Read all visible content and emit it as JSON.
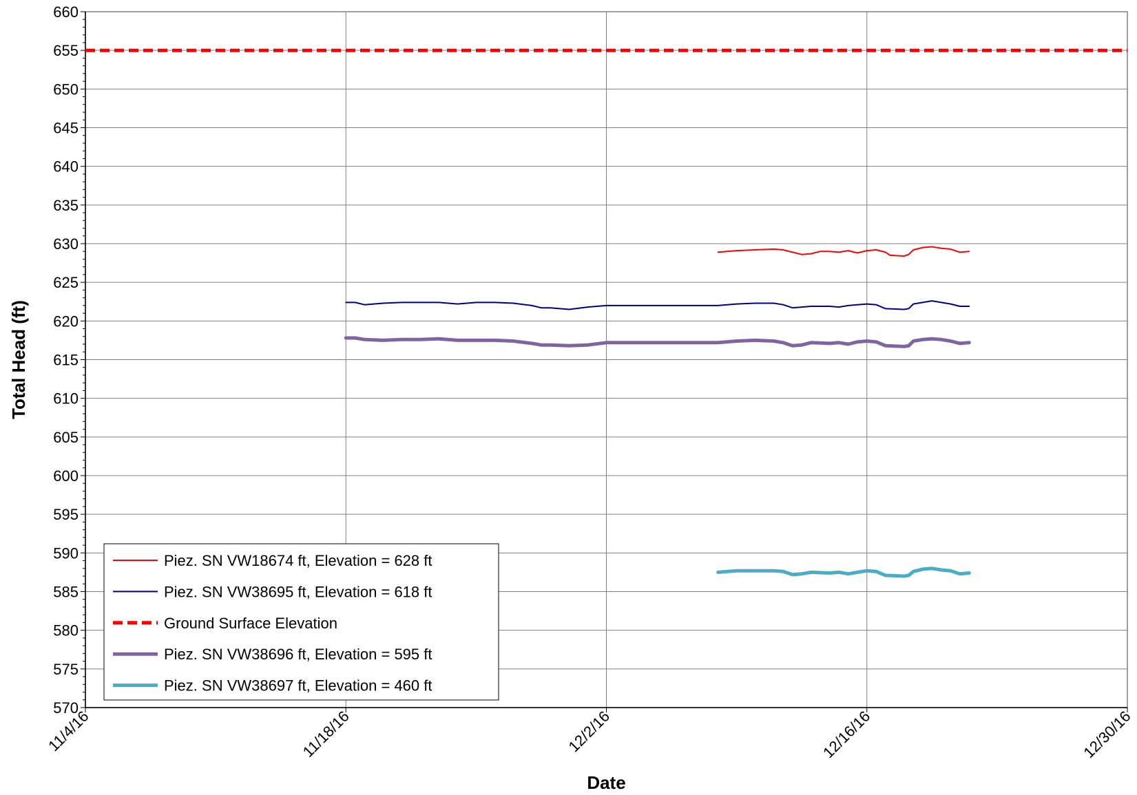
{
  "chart_data": {
    "type": "line",
    "xlabel": "Date",
    "ylabel": "Total Head (ft)",
    "ylim": [
      570,
      660
    ],
    "y_ticks": [
      570,
      575,
      580,
      585,
      590,
      595,
      600,
      605,
      610,
      615,
      620,
      625,
      630,
      635,
      640,
      645,
      650,
      655,
      660
    ],
    "x_range": [
      "2016-11-04",
      "2016-12-30"
    ],
    "x_ticks": [
      {
        "date": "2016-11-04",
        "label": "11/4/16"
      },
      {
        "date": "2016-11-18",
        "label": "11/18/16"
      },
      {
        "date": "2016-12-02",
        "label": "12/2/16"
      },
      {
        "date": "2016-12-16",
        "label": "12/16/16"
      },
      {
        "date": "2016-12-30",
        "label": "12/30/16"
      }
    ],
    "grid": true,
    "legend_position": "bottom-left",
    "series": [
      {
        "name": "Piez. SN VW18674 ft, Elevation = 628 ft",
        "color": "#ff0000",
        "style": "solid-thin",
        "points": [
          [
            "2016-12-08",
            628.9
          ],
          [
            "2016-12-09",
            629.1
          ],
          [
            "2016-12-10",
            629.2
          ],
          [
            "2016-12-11",
            629.3
          ],
          [
            "2016-12-11 12:00",
            629.2
          ],
          [
            "2016-12-12",
            628.9
          ],
          [
            "2016-12-12 12:00",
            628.6
          ],
          [
            "2016-12-13",
            628.7
          ],
          [
            "2016-12-13 12:00",
            629.0
          ],
          [
            "2016-12-14",
            629.0
          ],
          [
            "2016-12-14 12:00",
            628.9
          ],
          [
            "2016-12-15",
            629.1
          ],
          [
            "2016-12-15 12:00",
            628.8
          ],
          [
            "2016-12-16",
            629.1
          ],
          [
            "2016-12-16 12:00",
            629.2
          ],
          [
            "2016-12-17",
            628.9
          ],
          [
            "2016-12-17 06:00",
            628.5
          ],
          [
            "2016-12-18",
            628.4
          ],
          [
            "2016-12-18 06:00",
            628.6
          ],
          [
            "2016-12-18 12:00",
            629.2
          ],
          [
            "2016-12-19",
            629.5
          ],
          [
            "2016-12-19 12:00",
            629.6
          ],
          [
            "2016-12-20",
            629.4
          ],
          [
            "2016-12-20 12:00",
            629.3
          ],
          [
            "2016-12-21",
            628.9
          ],
          [
            "2016-12-21 12:00",
            629.0
          ]
        ]
      },
      {
        "name": "Piez. SN VW38695 ft, Elevation = 618 ft",
        "color": "#000080",
        "style": "solid-thin",
        "points": [
          [
            "2016-11-18",
            622.4
          ],
          [
            "2016-11-18 12:00",
            622.4
          ],
          [
            "2016-11-19",
            622.1
          ],
          [
            "2016-11-20",
            622.3
          ],
          [
            "2016-11-21",
            622.4
          ],
          [
            "2016-11-22",
            622.4
          ],
          [
            "2016-11-23",
            622.4
          ],
          [
            "2016-11-24",
            622.2
          ],
          [
            "2016-11-25",
            622.4
          ],
          [
            "2016-11-26",
            622.4
          ],
          [
            "2016-11-27",
            622.3
          ],
          [
            "2016-11-28",
            622.0
          ],
          [
            "2016-11-28 12:00",
            621.7
          ],
          [
            "2016-11-29",
            621.7
          ],
          [
            "2016-11-30",
            621.5
          ],
          [
            "2016-12-01",
            621.8
          ],
          [
            "2016-12-02",
            622.0
          ],
          [
            "2016-12-08",
            622.0
          ],
          [
            "2016-12-09",
            622.2
          ],
          [
            "2016-12-10",
            622.3
          ],
          [
            "2016-12-11",
            622.3
          ],
          [
            "2016-12-11 12:00",
            622.1
          ],
          [
            "2016-12-12",
            621.7
          ],
          [
            "2016-12-12 12:00",
            621.8
          ],
          [
            "2016-12-13",
            621.9
          ],
          [
            "2016-12-14",
            621.9
          ],
          [
            "2016-12-14 12:00",
            621.8
          ],
          [
            "2016-12-15",
            622.0
          ],
          [
            "2016-12-16",
            622.2
          ],
          [
            "2016-12-16 12:00",
            622.1
          ],
          [
            "2016-12-17",
            621.6
          ],
          [
            "2016-12-18",
            621.5
          ],
          [
            "2016-12-18 06:00",
            621.6
          ],
          [
            "2016-12-18 12:00",
            622.2
          ],
          [
            "2016-12-19",
            622.4
          ],
          [
            "2016-12-19 12:00",
            622.6
          ],
          [
            "2016-12-20",
            622.4
          ],
          [
            "2016-12-20 12:00",
            622.2
          ],
          [
            "2016-12-21",
            621.9
          ],
          [
            "2016-12-21 12:00",
            621.9
          ]
        ]
      },
      {
        "name": "Ground Surface Elevation",
        "color": "#ff0000",
        "style": "dashed-thick",
        "points": [
          [
            "2016-11-04",
            655
          ],
          [
            "2016-12-30",
            655
          ]
        ]
      },
      {
        "name": "Piez. SN VW38696 ft, Elevation = 595 ft",
        "color": "#8064a2",
        "style": "solid-thick",
        "points": [
          [
            "2016-11-18",
            617.8
          ],
          [
            "2016-11-18 12:00",
            617.8
          ],
          [
            "2016-11-19",
            617.6
          ],
          [
            "2016-11-20",
            617.5
          ],
          [
            "2016-11-21",
            617.6
          ],
          [
            "2016-11-22",
            617.6
          ],
          [
            "2016-11-23",
            617.7
          ],
          [
            "2016-11-24",
            617.5
          ],
          [
            "2016-11-25",
            617.5
          ],
          [
            "2016-11-26",
            617.5
          ],
          [
            "2016-11-27",
            617.4
          ],
          [
            "2016-11-28",
            617.1
          ],
          [
            "2016-11-28 12:00",
            616.9
          ],
          [
            "2016-11-29",
            616.9
          ],
          [
            "2016-11-30",
            616.8
          ],
          [
            "2016-12-01",
            616.9
          ],
          [
            "2016-12-02",
            617.2
          ],
          [
            "2016-12-08",
            617.2
          ],
          [
            "2016-12-09",
            617.4
          ],
          [
            "2016-12-10",
            617.5
          ],
          [
            "2016-12-11",
            617.4
          ],
          [
            "2016-12-11 12:00",
            617.2
          ],
          [
            "2016-12-12",
            616.8
          ],
          [
            "2016-12-12 12:00",
            616.9
          ],
          [
            "2016-12-13",
            617.2
          ],
          [
            "2016-12-14",
            617.1
          ],
          [
            "2016-12-14 12:00",
            617.2
          ],
          [
            "2016-12-15",
            617.0
          ],
          [
            "2016-12-15 12:00",
            617.3
          ],
          [
            "2016-12-16",
            617.4
          ],
          [
            "2016-12-16 12:00",
            617.3
          ],
          [
            "2016-12-17",
            616.8
          ],
          [
            "2016-12-18",
            616.7
          ],
          [
            "2016-12-18 06:00",
            616.8
          ],
          [
            "2016-12-18 12:00",
            617.4
          ],
          [
            "2016-12-19",
            617.6
          ],
          [
            "2016-12-19 12:00",
            617.7
          ],
          [
            "2016-12-20",
            617.6
          ],
          [
            "2016-12-20 12:00",
            617.4
          ],
          [
            "2016-12-21",
            617.1
          ],
          [
            "2016-12-21 12:00",
            617.2
          ]
        ]
      },
      {
        "name": "Piez. SN VW38697 ft, Elevation = 460 ft",
        "color": "#4bacc6",
        "style": "solid-thick",
        "points": [
          [
            "2016-12-08",
            587.5
          ],
          [
            "2016-12-09",
            587.7
          ],
          [
            "2016-12-10",
            587.7
          ],
          [
            "2016-12-11",
            587.7
          ],
          [
            "2016-12-11 12:00",
            587.6
          ],
          [
            "2016-12-12",
            587.2
          ],
          [
            "2016-12-12 12:00",
            587.3
          ],
          [
            "2016-12-13",
            587.5
          ],
          [
            "2016-12-14",
            587.4
          ],
          [
            "2016-12-14 12:00",
            587.5
          ],
          [
            "2016-12-15",
            587.3
          ],
          [
            "2016-12-15 12:00",
            587.5
          ],
          [
            "2016-12-16",
            587.7
          ],
          [
            "2016-12-16 12:00",
            587.6
          ],
          [
            "2016-12-17",
            587.1
          ],
          [
            "2016-12-18",
            587.0
          ],
          [
            "2016-12-18 06:00",
            587.1
          ],
          [
            "2016-12-18 12:00",
            587.6
          ],
          [
            "2016-12-19",
            587.9
          ],
          [
            "2016-12-19 12:00",
            588.0
          ],
          [
            "2016-12-20",
            587.8
          ],
          [
            "2016-12-20 12:00",
            587.7
          ],
          [
            "2016-12-21",
            587.3
          ],
          [
            "2016-12-21 12:00",
            587.4
          ]
        ]
      }
    ]
  }
}
